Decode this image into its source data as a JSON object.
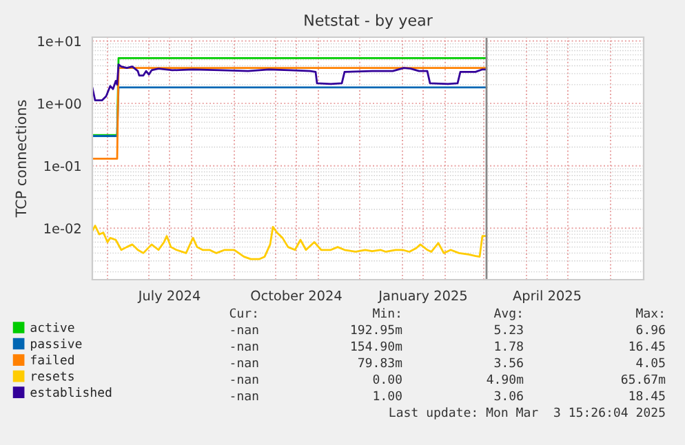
{
  "chart_data": {
    "type": "line",
    "title": "Netstat - by year",
    "ylabel": "TCP connections",
    "log": "y",
    "grid": true,
    "legend": "bottom",
    "xlim": [
      "2024-05-21",
      "2025-06-25"
    ],
    "xticks": [
      {
        "value": "2024-06-01",
        "label": null
      },
      {
        "value": "2024-07-01",
        "label": null
      },
      {
        "value": "2024-07-16",
        "label": "July 2024"
      },
      {
        "value": "2024-08-01",
        "label": null
      },
      {
        "value": "2024-09-01",
        "label": null
      },
      {
        "value": "2024-10-01",
        "label": null
      },
      {
        "value": "2024-10-16",
        "label": "October 2024"
      },
      {
        "value": "2024-11-01",
        "label": null
      },
      {
        "value": "2024-12-01",
        "label": null
      },
      {
        "value": "2025-01-01",
        "label": null
      },
      {
        "value": "2025-01-16",
        "label": "January 2025"
      },
      {
        "value": "2025-02-01",
        "label": null
      },
      {
        "value": "2025-03-01",
        "label": null
      },
      {
        "value": "2025-04-01",
        "label": null
      },
      {
        "value": "2025-04-16",
        "label": "April 2025"
      },
      {
        "value": "2025-05-01",
        "label": null
      },
      {
        "value": "2025-06-01",
        "label": null
      }
    ],
    "ylim": [
      0.0015,
      11.5
    ],
    "yticks": [
      {
        "value": 0.01,
        "label": "1e-02"
      },
      {
        "value": 0.1,
        "label": "1e-01"
      },
      {
        "value": 1,
        "label": "1e+00"
      },
      {
        "value": 10,
        "label": "1e+01"
      }
    ],
    "ref_lines": [
      {
        "axis": "x",
        "value": "2025-03-03",
        "label": null,
        "color": "#888888"
      }
    ],
    "series": [
      {
        "name": "active",
        "color": "#00cc00",
        "x": [
          "2024-05-21",
          "2024-06-08",
          "2024-06-09",
          "2025-03-03"
        ],
        "values": [
          0.31,
          0.31,
          5.3,
          5.3
        ]
      },
      {
        "name": "passive",
        "color": "#0066b3",
        "x": [
          "2024-05-21",
          "2024-06-08",
          "2024-06-09",
          "2025-03-03"
        ],
        "values": [
          0.3,
          0.3,
          1.8,
          1.8
        ]
      },
      {
        "name": "failed",
        "color": "#ff8000",
        "x": [
          "2024-05-21",
          "2024-06-08",
          "2024-06-09",
          "2025-03-03"
        ],
        "values": [
          0.13,
          0.13,
          3.7,
          3.7
        ]
      },
      {
        "name": "resets",
        "color": "#ffcc00",
        "x": [
          "2024-05-21",
          "2024-05-23",
          "2024-05-26",
          "2024-05-29",
          "2024-06-01",
          "2024-06-03",
          "2024-06-07",
          "2024-06-11",
          "2024-06-15",
          "2024-06-19",
          "2024-06-23",
          "2024-06-27",
          "2024-07-03",
          "2024-07-08",
          "2024-07-12",
          "2024-07-14",
          "2024-07-17",
          "2024-07-21",
          "2024-07-28",
          "2024-08-02",
          "2024-08-05",
          "2024-08-09",
          "2024-08-14",
          "2024-08-19",
          "2024-08-25",
          "2024-09-01",
          "2024-09-08",
          "2024-09-13",
          "2024-09-19",
          "2024-09-23",
          "2024-09-27",
          "2024-09-29",
          "2024-10-02",
          "2024-10-06",
          "2024-10-10",
          "2024-10-15",
          "2024-10-19",
          "2024-10-23",
          "2024-10-29",
          "2024-11-03",
          "2024-11-10",
          "2024-11-15",
          "2024-11-20",
          "2024-11-28",
          "2024-12-05",
          "2024-12-10",
          "2024-12-16",
          "2024-12-20",
          "2024-12-27",
          "2025-01-01",
          "2025-01-06",
          "2025-01-11",
          "2025-01-14",
          "2025-01-19",
          "2025-01-22",
          "2025-01-27",
          "2025-01-31",
          "2025-02-05",
          "2025-02-11",
          "2025-02-18",
          "2025-02-23",
          "2025-02-26",
          "2025-02-28",
          "2025-03-03"
        ],
        "values": [
          0.009,
          0.011,
          0.008,
          0.0085,
          0.006,
          0.007,
          0.0065,
          0.0045,
          0.005,
          0.0055,
          0.0045,
          0.004,
          0.0055,
          0.0045,
          0.006,
          0.0075,
          0.005,
          0.0045,
          0.004,
          0.007,
          0.005,
          0.0045,
          0.0045,
          0.004,
          0.0045,
          0.0045,
          0.0035,
          0.0032,
          0.0032,
          0.0035,
          0.0055,
          0.0105,
          0.0085,
          0.007,
          0.005,
          0.0045,
          0.0065,
          0.0045,
          0.006,
          0.0045,
          0.0045,
          0.005,
          0.0045,
          0.0042,
          0.0045,
          0.0043,
          0.0045,
          0.0042,
          0.0045,
          0.0045,
          0.0042,
          0.0048,
          0.0055,
          0.0045,
          0.0042,
          0.0058,
          0.004,
          0.0045,
          0.004,
          0.0038,
          0.0036,
          0.0035,
          0.0075,
          0.0075
        ]
      },
      {
        "name": "established",
        "color": "#330099",
        "x": [
          "2024-05-21",
          "2024-05-23",
          "2024-05-28",
          "2024-05-31",
          "2024-06-03",
          "2024-06-05",
          "2024-06-07",
          "2024-06-08",
          "2024-06-09",
          "2024-06-11",
          "2024-06-15",
          "2024-06-19",
          "2024-06-23",
          "2024-06-24",
          "2024-06-27",
          "2024-06-29",
          "2024-07-01",
          "2024-07-03",
          "2024-07-08",
          "2024-07-18",
          "2024-08-02",
          "2024-08-22",
          "2024-09-11",
          "2024-09-26",
          "2024-10-11",
          "2024-10-26",
          "2024-10-30",
          "2024-10-31",
          "2024-11-10",
          "2024-11-18",
          "2024-11-20",
          "2024-12-10",
          "2024-12-25",
          "2025-01-02",
          "2025-01-07",
          "2025-01-13",
          "2025-01-19",
          "2025-01-21",
          "2025-02-03",
          "2025-02-10",
          "2025-02-12",
          "2025-02-23",
          "2025-02-28",
          "2025-03-03"
        ],
        "values": [
          1.8,
          1.12,
          1.12,
          1.3,
          1.9,
          1.7,
          2.3,
          2.0,
          4.2,
          3.9,
          3.7,
          3.9,
          3.3,
          2.8,
          2.8,
          3.3,
          2.9,
          3.4,
          3.6,
          3.4,
          3.5,
          3.4,
          3.3,
          3.5,
          3.4,
          3.3,
          3.2,
          2.1,
          2.05,
          2.1,
          3.2,
          3.3,
          3.3,
          3.7,
          3.6,
          3.3,
          3.3,
          2.1,
          2.05,
          2.1,
          3.2,
          3.2,
          3.5,
          3.5
        ]
      }
    ],
    "annotations": [
      "Cur:",
      "Min:",
      "Avg:",
      "Max:",
      "-nan",
      "192.95m",
      "5.23",
      "6.96",
      "-nan",
      "154.90m",
      "1.78",
      "16.45",
      "-nan",
      "79.83m",
      "3.56",
      "4.05",
      "-nan",
      "0.00",
      "4.90m",
      "65.67m",
      "-nan",
      "1.00",
      "3.06",
      "18.45",
      "Last update: Mon Mar  3 15:26:04 2025"
    ]
  }
}
